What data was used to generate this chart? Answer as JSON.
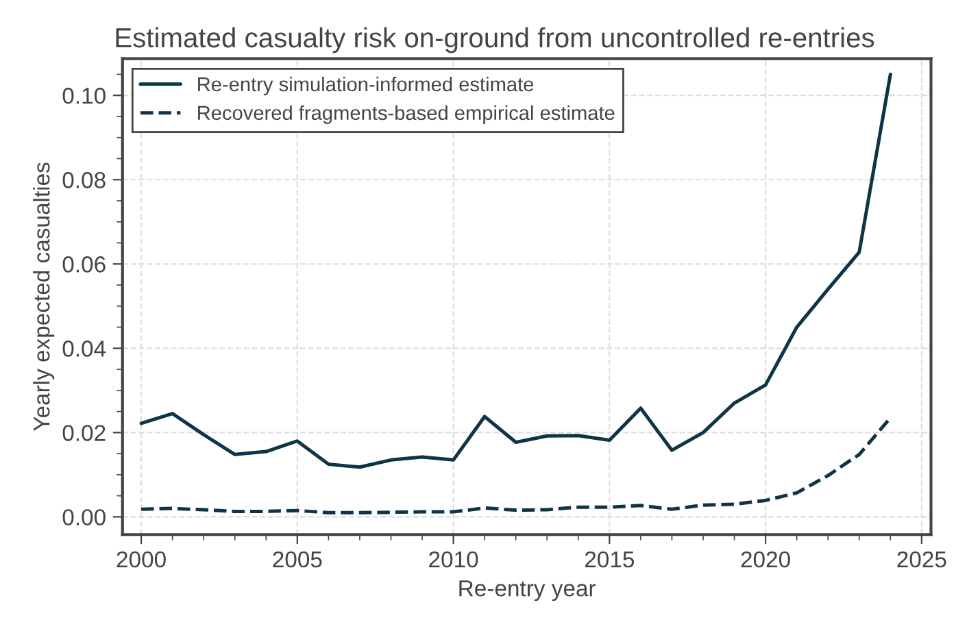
{
  "chart_data": {
    "type": "line",
    "title": "Estimated casualty risk on-ground from uncontrolled re-entries",
    "xlabel": "Re-entry year",
    "ylabel": "Yearly expected casualties",
    "x": [
      2000,
      2001,
      2002,
      2003,
      2004,
      2005,
      2006,
      2007,
      2008,
      2009,
      2010,
      2011,
      2012,
      2013,
      2014,
      2015,
      2016,
      2017,
      2018,
      2019,
      2020,
      2021,
      2022,
      2023,
      2024
    ],
    "series": [
      {
        "name": "Re-entry simulation-informed estimate",
        "color": "#0d3447",
        "line_style": "solid",
        "values": [
          0.0222,
          0.0245,
          0.0195,
          0.0148,
          0.0155,
          0.018,
          0.0125,
          0.0118,
          0.0135,
          0.0142,
          0.0135,
          0.0238,
          0.0177,
          0.0192,
          0.0193,
          0.0182,
          0.0258,
          0.0158,
          0.02,
          0.027,
          0.0313,
          0.045,
          0.054,
          0.0628,
          0.105
        ]
      },
      {
        "name": "Recovered fragments-based empirical estimate",
        "color": "#0d3447",
        "line_style": "dashed",
        "values": [
          0.0018,
          0.002,
          0.0017,
          0.0013,
          0.0013,
          0.0015,
          0.001,
          0.001,
          0.0011,
          0.0012,
          0.0012,
          0.0021,
          0.0016,
          0.0017,
          0.0023,
          0.0023,
          0.0027,
          0.0018,
          0.0028,
          0.003,
          0.0039,
          0.0057,
          0.0098,
          0.0148,
          0.0235
        ]
      }
    ],
    "xlim": [
      1999.4,
      2025.3
    ],
    "ylim": [
      -0.0042,
      0.1087
    ],
    "xticks": [
      2000,
      2005,
      2010,
      2015,
      2020,
      2025
    ],
    "yticks": [
      {
        "value": 0,
        "label": "0.00"
      },
      {
        "value": 0.02,
        "label": "0.02"
      },
      {
        "value": 0.04,
        "label": "0.04"
      },
      {
        "value": 0.06,
        "label": "0.06"
      },
      {
        "value": 0.08,
        "label": "0.08"
      },
      {
        "value": 0.1,
        "label": "0.10"
      }
    ],
    "grid": true,
    "legend": "top left"
  }
}
